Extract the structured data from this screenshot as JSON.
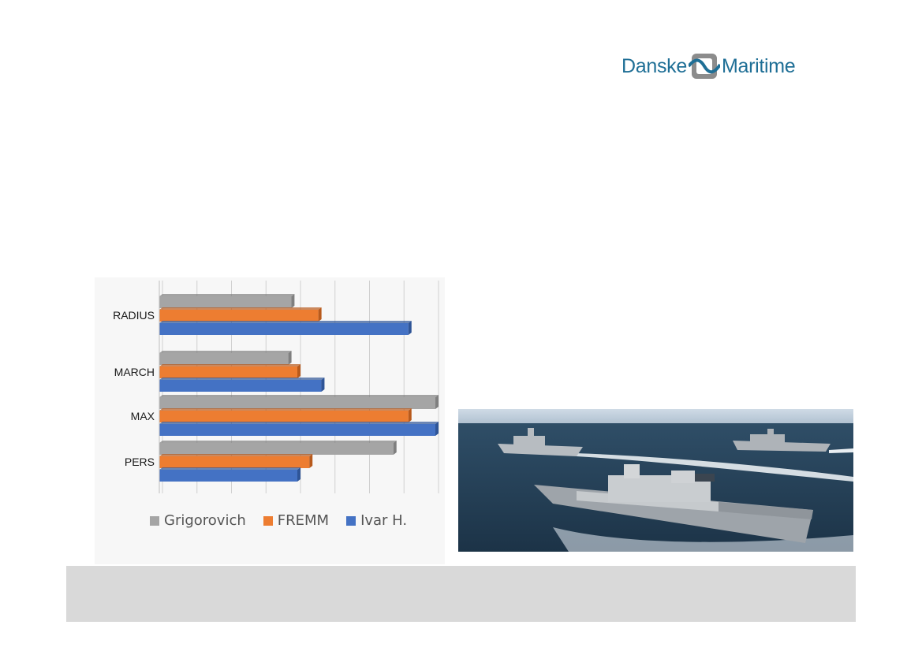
{
  "logo": {
    "left_text": "Danske",
    "right_text": "Maritime"
  },
  "colors": {
    "grigorovich": "#a5a5a5",
    "fremm": "#ed7d31",
    "ivar": "#4472c4",
    "brand": "#1f6f96",
    "footer": "#d9d9d9"
  },
  "chart_data": {
    "type": "bar",
    "orientation": "horizontal",
    "categories": [
      "RADIUS",
      "MARCH",
      "MAX",
      "PERS"
    ],
    "series": [
      {
        "name": "Grigorovich",
        "values": [
          22,
          21.5,
          46,
          39
        ]
      },
      {
        "name": "FREMM",
        "values": [
          26.5,
          23,
          41.5,
          25
        ]
      },
      {
        "name": "Ivar H.",
        "values": [
          41.5,
          27,
          46,
          23
        ]
      }
    ],
    "xlim": [
      0,
      46
    ],
    "grid": true,
    "legend_position": "bottom"
  },
  "photo": {
    "subject": "ships-photo"
  }
}
